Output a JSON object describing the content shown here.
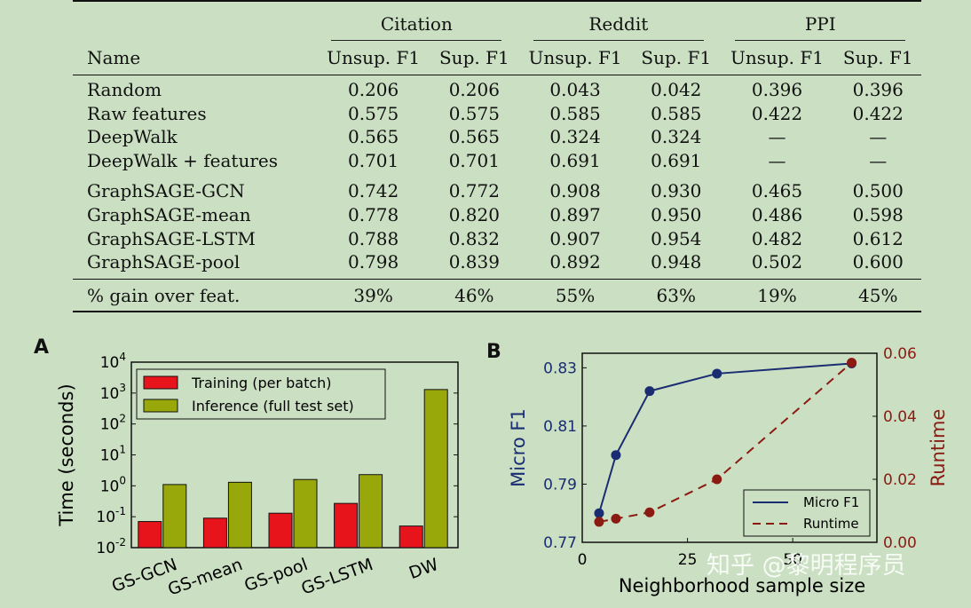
{
  "table": {
    "group_headers": [
      "Citation",
      "Reddit",
      "PPI"
    ],
    "columns": [
      "Name",
      "Unsup. F1",
      "Sup. F1",
      "Unsup. F1",
      "Sup. F1",
      "Unsup. F1",
      "Sup. F1"
    ],
    "rows_baseline": [
      {
        "name": "Random",
        "values": [
          "0.206",
          "0.206",
          "0.043",
          "0.042",
          "0.396",
          "0.396"
        ],
        "bold": []
      },
      {
        "name": "Raw features",
        "values": [
          "0.575",
          "0.575",
          "0.585",
          "0.585",
          "0.422",
          "0.422"
        ],
        "bold": []
      },
      {
        "name": "DeepWalk",
        "values": [
          "0.565",
          "0.565",
          "0.324",
          "0.324",
          "—",
          "—"
        ],
        "bold": []
      },
      {
        "name": "DeepWalk + features",
        "values": [
          "0.701",
          "0.701",
          "0.691",
          "0.691",
          "—",
          "—"
        ],
        "bold": []
      }
    ],
    "rows_graphsage": [
      {
        "name": "GraphSAGE-GCN",
        "values": [
          "0.742",
          "0.772",
          "0.908",
          "0.930",
          "0.465",
          "0.500"
        ],
        "bold": [
          2
        ]
      },
      {
        "name": "GraphSAGE-mean",
        "values": [
          "0.778",
          "0.820",
          "0.897",
          "0.950",
          "0.486",
          "0.598"
        ],
        "bold": []
      },
      {
        "name": "GraphSAGE-LSTM",
        "values": [
          "0.788",
          "0.832",
          "0.907",
          "0.954",
          "0.482",
          "0.612"
        ],
        "bold": [
          2,
          3,
          5
        ]
      },
      {
        "name": "GraphSAGE-pool",
        "values": [
          "0.798",
          "0.839",
          "0.892",
          "0.948",
          "0.502",
          "0.600"
        ],
        "bold": [
          0,
          1,
          4
        ]
      }
    ],
    "gain_row": {
      "name": "% gain over feat.",
      "values": [
        "39%",
        "46%",
        "55%",
        "63%",
        "19%",
        "45%"
      ]
    }
  },
  "panel_a_label": "A",
  "panel_b_label": "B",
  "watermark": "知乎 @黎明程序员",
  "chart_data": [
    {
      "type": "bar",
      "ylabel": "Time (seconds)",
      "yscale": "log",
      "ylim": [
        0.01,
        10000
      ],
      "yticks": [
        "10^-2",
        "10^-1",
        "10^0",
        "10^1",
        "10^2",
        "10^3",
        "10^4"
      ],
      "categories": [
        "GS-GCN",
        "GS-mean",
        "GS-pool",
        "GS-LSTM",
        "DW"
      ],
      "legend_position": "top-left",
      "series": [
        {
          "name": "Training (per batch)",
          "color": "#e8141c",
          "values": [
            0.07,
            0.09,
            0.13,
            0.27,
            0.05
          ]
        },
        {
          "name": "Inference (full test set)",
          "color": "#98a80a",
          "values": [
            1.1,
            1.3,
            1.6,
            2.3,
            1300
          ]
        }
      ]
    },
    {
      "type": "line",
      "xlabel": "Neighborhood sample size",
      "ylabel": "Micro F1",
      "y2label": "Runtime",
      "xlim": [
        0,
        70
      ],
      "xticks": [
        0,
        25,
        50,
        75
      ],
      "ylim": [
        0.77,
        0.835
      ],
      "yticks": [
        "0.77",
        "0.79",
        "0.81",
        "0.83"
      ],
      "y2lim": [
        0,
        0.06
      ],
      "y2ticks": [
        "0.00",
        "0.02",
        "0.04",
        "0.06"
      ],
      "legend_position": "lower-right",
      "series": [
        {
          "name": "Micro F1",
          "axis": "left",
          "color": "#1a2d72",
          "style": "solid",
          "x": [
            4,
            8,
            16,
            32,
            64
          ],
          "y": [
            0.78,
            0.8,
            0.822,
            0.828,
            0.8315
          ]
        },
        {
          "name": "Runtime",
          "axis": "right",
          "color": "#8b1a12",
          "style": "dashed",
          "x": [
            4,
            8,
            16,
            32,
            64
          ],
          "y": [
            0.0065,
            0.0075,
            0.0095,
            0.02,
            0.057
          ]
        }
      ]
    }
  ]
}
